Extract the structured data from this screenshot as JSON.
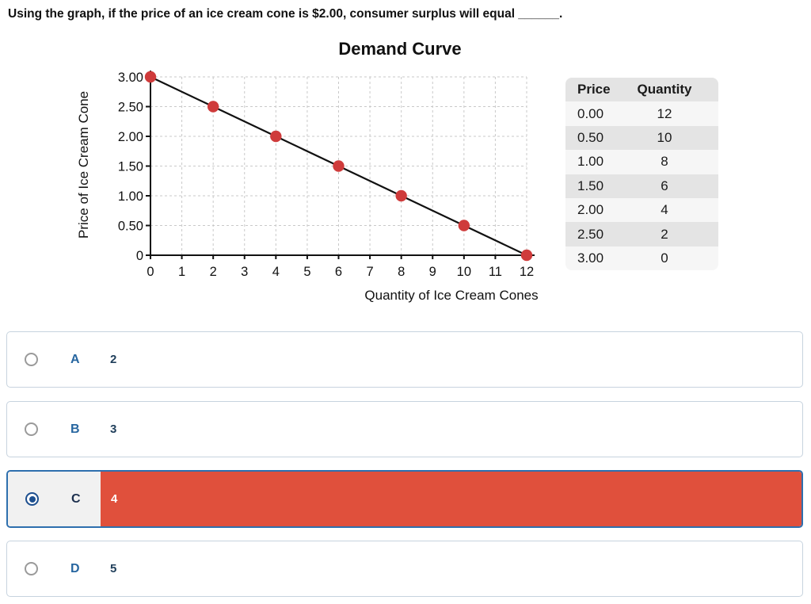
{
  "question": "Using the graph, if the price of an ice cream cone is $2.00, consumer surplus will equal ______.",
  "chart_data": {
    "type": "line",
    "title": "Demand Curve",
    "xlabel": "Quantity of Ice Cream Cones",
    "ylabel": "Price of Ice Cream Cone",
    "x": [
      0,
      2,
      4,
      6,
      8,
      10,
      12
    ],
    "y": [
      3.0,
      2.5,
      2.0,
      1.5,
      1.0,
      0.5,
      0
    ],
    "xlim": [
      0,
      12
    ],
    "ylim": [
      0,
      3
    ],
    "x_ticks": [
      0,
      1,
      2,
      3,
      4,
      5,
      6,
      7,
      8,
      9,
      10,
      11,
      12
    ],
    "y_ticks": [
      0,
      0.5,
      1.0,
      1.5,
      2.0,
      2.5,
      3.0
    ],
    "y_tick_labels": [
      "0",
      "0.50",
      "1.00",
      "1.50",
      "2.00",
      "2.50",
      "3.00"
    ],
    "grid": true,
    "legend": "none",
    "line_color": "#111111",
    "point_color": "#cf3b3b"
  },
  "table": {
    "headers": [
      "Price",
      "Quantity"
    ],
    "rows": [
      [
        "0.00",
        "12"
      ],
      [
        "0.50",
        "10"
      ],
      [
        "1.00",
        "8"
      ],
      [
        "1.50",
        "6"
      ],
      [
        "2.00",
        "4"
      ],
      [
        "2.50",
        "2"
      ],
      [
        "3.00",
        "0"
      ]
    ]
  },
  "options": [
    {
      "letter": "A",
      "value": "2",
      "selected": false
    },
    {
      "letter": "B",
      "value": "3",
      "selected": false
    },
    {
      "letter": "C",
      "value": "4",
      "selected": true
    },
    {
      "letter": "D",
      "value": "5",
      "selected": false
    }
  ],
  "colors": {
    "selected_fill": "#e0503c",
    "selected_border": "#2e6fae",
    "option_letter_blue": "#2766a0",
    "option_value_navy": "#1f3e5a",
    "point_red": "#cf3b3b"
  }
}
